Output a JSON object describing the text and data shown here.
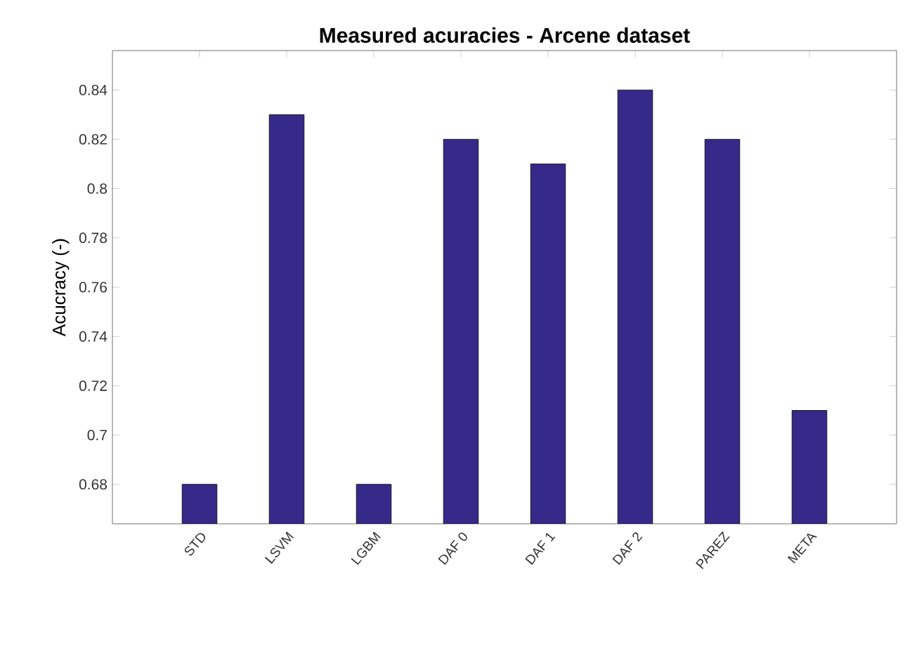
{
  "chart_data": {
    "type": "bar",
    "title": "Measured acuracies - Arcene dataset",
    "ylabel": "Acucracy (-)",
    "categories": [
      "STD",
      "LSVM",
      "LGBM",
      "DAF 0",
      "DAF 1",
      "DAF 2",
      "PAREZ",
      "META"
    ],
    "values": [
      0.68,
      0.83,
      0.68,
      0.82,
      0.81,
      0.84,
      0.82,
      0.71
    ],
    "color": "#35298a",
    "ylim": [
      0.664,
      0.856
    ],
    "yticks": [
      0.68,
      0.7,
      0.72,
      0.74,
      0.76,
      0.78,
      0.8,
      0.82,
      0.84
    ]
  }
}
